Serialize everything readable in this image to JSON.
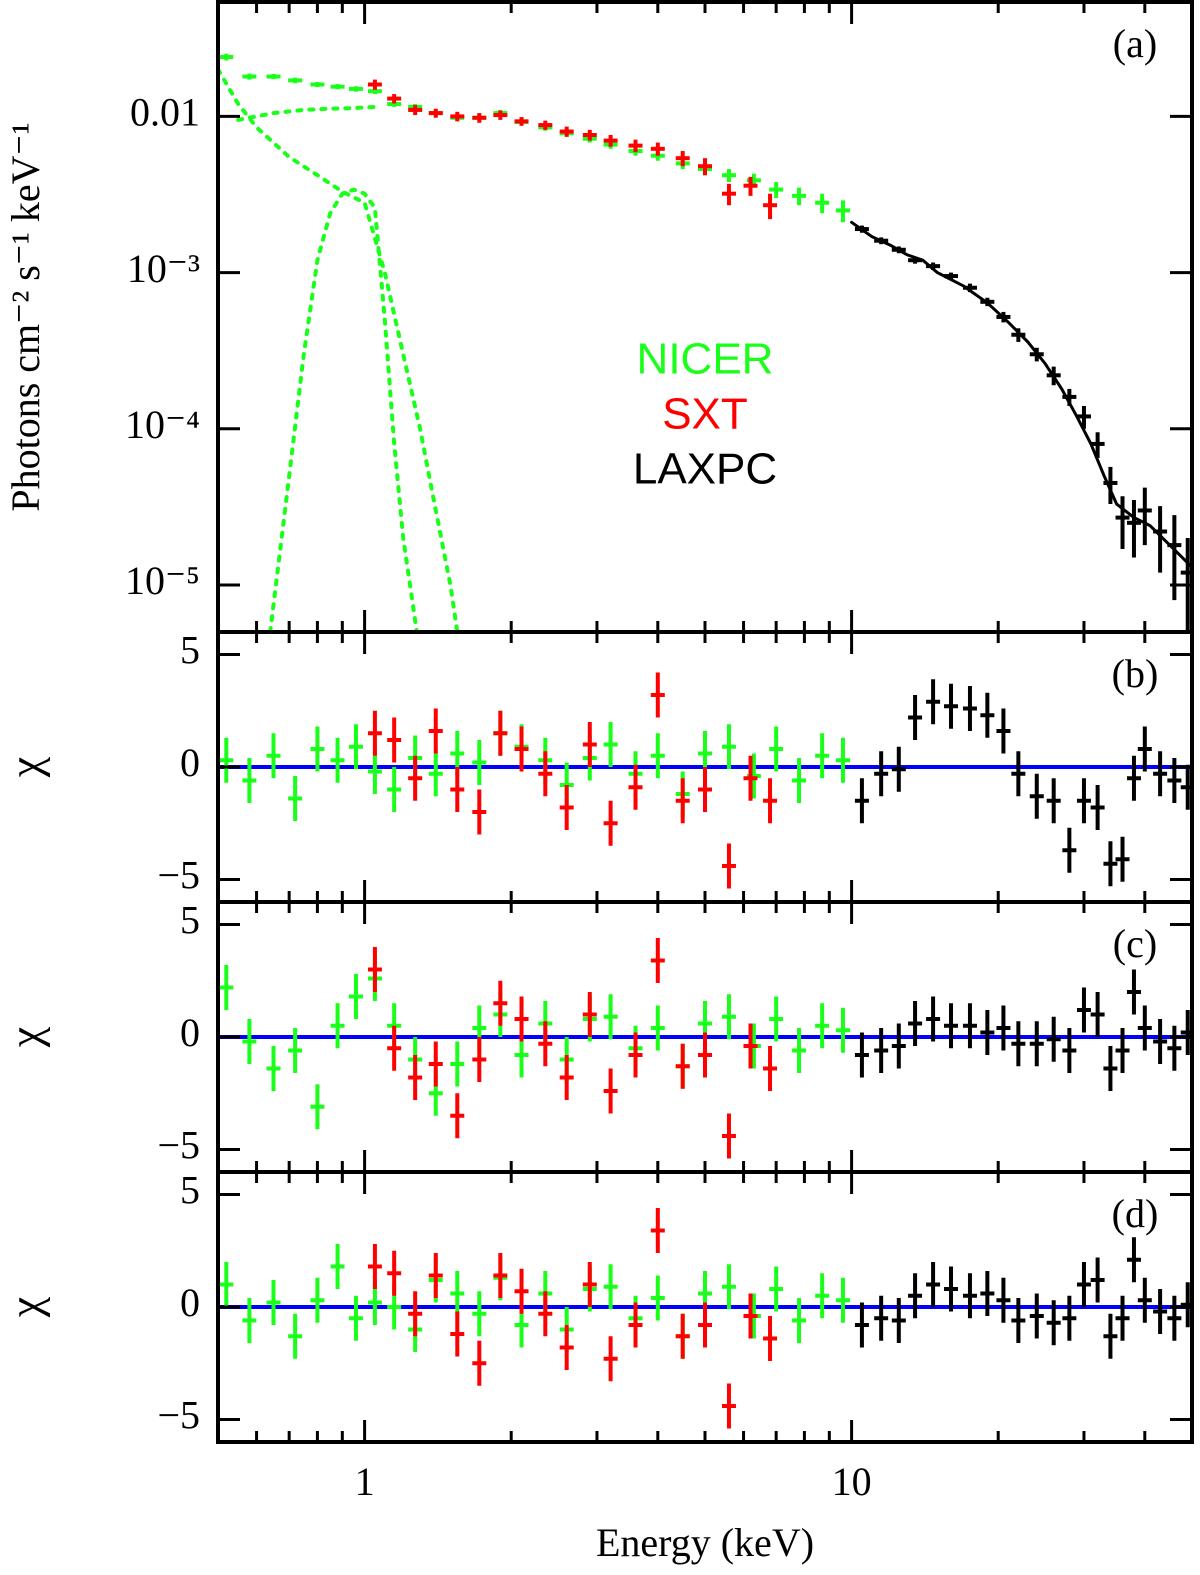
{
  "chart_data": [
    {
      "type": "errorbar",
      "panel_label": "(a)",
      "ylabel": "Photons cm⁻² s⁻¹ keV⁻¹",
      "ylog": true,
      "xlog": true,
      "xlim": [
        0.5,
        50
      ],
      "xticks": [
        1,
        10
      ],
      "xminorticks": [
        0.6,
        0.7,
        0.8,
        0.9,
        2,
        3,
        4,
        5,
        6,
        7,
        8,
        9,
        20,
        30,
        40,
        50
      ],
      "ylim": [
        5e-06,
        0.054
      ],
      "yticks": [
        {
          "value": 0.01,
          "label": "0.01"
        },
        {
          "value": 0.001,
          "label": "10⁻³"
        },
        {
          "value": 0.0001,
          "label": "10⁻⁴"
        },
        {
          "value": 1e-05,
          "label": "10⁻⁵"
        }
      ],
      "legend": "center",
      "series": [
        {
          "name": "NICER",
          "color": "#1aff1a",
          "x": [
            0.52,
            0.58,
            0.65,
            0.72,
            0.8,
            0.88,
            0.96,
            1.05,
            1.15,
            1.27,
            1.4,
            1.55,
            1.72,
            1.9,
            2.1,
            2.35,
            2.6,
            2.9,
            3.2,
            3.6,
            4.0,
            4.5,
            5.0,
            5.6,
            6.3,
            7.0,
            7.8,
            8.7,
            9.6
          ],
          "y": [
            0.024,
            0.018,
            0.018,
            0.017,
            0.016,
            0.0155,
            0.015,
            0.0145,
            0.012,
            0.0115,
            0.0105,
            0.0098,
            0.0098,
            0.0105,
            0.0092,
            0.0085,
            0.0078,
            0.0072,
            0.0066,
            0.006,
            0.0056,
            0.005,
            0.0046,
            0.0042,
            0.0039,
            0.0034,
            0.0031,
            0.0028,
            0.0025
          ],
          "yerr": [
            0.0012,
            0.0008,
            0.0007,
            0.0007,
            0.0006,
            0.0006,
            0.0006,
            0.0006,
            0.0005,
            0.0005,
            0.0005,
            0.0005,
            0.0005,
            0.0005,
            0.0004,
            0.0004,
            0.0004,
            0.0004,
            0.0004,
            0.0004,
            0.0004,
            0.0004,
            0.0004,
            0.0004,
            0.0004,
            0.0004,
            0.0004,
            0.0004,
            0.0004
          ]
        },
        {
          "name": "SXT",
          "color": "#ff0000",
          "x": [
            1.05,
            1.15,
            1.27,
            1.4,
            1.55,
            1.72,
            1.9,
            2.1,
            2.35,
            2.6,
            2.9,
            3.2,
            3.6,
            4.0,
            4.5,
            5.0,
            5.6,
            6.2,
            6.8
          ],
          "y": [
            0.016,
            0.013,
            0.011,
            0.0105,
            0.01,
            0.0098,
            0.0102,
            0.0093,
            0.0088,
            0.008,
            0.0076,
            0.007,
            0.0065,
            0.0062,
            0.0054,
            0.0048,
            0.0032,
            0.0036,
            0.0027
          ],
          "yerr": [
            0.0012,
            0.0009,
            0.0008,
            0.0007,
            0.0007,
            0.0007,
            0.0007,
            0.0006,
            0.0006,
            0.0006,
            0.0006,
            0.0006,
            0.0006,
            0.0006,
            0.0006,
            0.0006,
            0.0005,
            0.0005,
            0.0005
          ]
        },
        {
          "name": "LAXPC",
          "color": "#000000",
          "x": [
            10.5,
            11.5,
            12.5,
            13.5,
            14.7,
            16,
            17.5,
            19,
            20.5,
            22,
            24,
            26,
            28,
            30,
            32,
            34,
            36,
            38,
            40,
            43,
            46,
            49
          ],
          "y": [
            0.0019,
            0.0016,
            0.0014,
            0.0012,
            0.0011,
            0.00095,
            0.0008,
            0.00065,
            0.00052,
            0.0004,
            0.0003,
            0.00022,
            0.00016,
            0.00012,
            8e-05,
            4.5e-05,
            2.7e-05,
            2.5e-05,
            3e-05,
            2.2e-05,
            1.8e-05,
            1.2e-05
          ],
          "yerr": [
            0.0001,
            8e-05,
            7e-05,
            6e-05,
            6e-05,
            5e-05,
            5e-05,
            4e-05,
            4e-05,
            4e-05,
            3e-05,
            3e-05,
            2e-05,
            2e-05,
            1.5e-05,
            1.2e-05,
            1e-05,
            1e-05,
            1.2e-05,
            1e-05,
            1e-05,
            8e-06
          ]
        }
      ],
      "model_lines": [
        {
          "color": "#000000",
          "dashed": false,
          "x": [
            10,
            11,
            12,
            13,
            14,
            15,
            17,
            19,
            21,
            23,
            25,
            27,
            29,
            31,
            33,
            35,
            38,
            41,
            45,
            50
          ],
          "y": [
            0.0021,
            0.0017,
            0.0015,
            0.0013,
            0.0012,
            0.001,
            0.00082,
            0.00064,
            0.00048,
            0.00036,
            0.00026,
            0.00018,
            0.00012,
            8e-05,
            5e-05,
            3.3e-05,
            2.7e-05,
            2.4e-05,
            1.8e-05,
            1.3e-05
          ]
        },
        {
          "color": "#1aff1a",
          "dashed": true,
          "x": [
            0.55,
            0.65,
            0.75,
            0.85,
            0.95,
            1.05
          ],
          "y": [
            0.0095,
            0.0105,
            0.011,
            0.0112,
            0.0113,
            0.0115
          ]
        },
        {
          "color": "#1aff1a",
          "dashed": true,
          "x": [
            0.64,
            0.7,
            0.75,
            0.8,
            0.85,
            0.9,
            0.95,
            1.0,
            1.05,
            1.1,
            1.15,
            1.2,
            1.28
          ],
          "y": [
            5e-06,
            5e-05,
            0.0003,
            0.0012,
            0.0024,
            0.0032,
            0.0034,
            0.0032,
            0.0026,
            0.0005,
            8e-05,
            2e-05,
            5e-06
          ]
        },
        {
          "color": "#1aff1a",
          "dashed": true,
          "x": [
            0.5,
            0.55,
            0.6,
            0.7,
            0.8,
            0.9,
            1.0,
            1.1,
            1.2,
            1.3,
            1.4,
            1.5,
            1.55
          ],
          "y": [
            0.02,
            0.012,
            0.0085,
            0.0055,
            0.0042,
            0.0033,
            0.0028,
            0.001,
            0.0003,
            0.0001,
            3e-05,
            1e-05,
            5e-06
          ]
        }
      ]
    },
    {
      "type": "errorbar",
      "panel_label": "(b)",
      "ylabel": "χ",
      "ylog": false,
      "xlog": true,
      "xlim": [
        0.5,
        50
      ],
      "xticks": [
        1,
        10
      ],
      "xminorticks": [
        0.6,
        0.7,
        0.8,
        0.9,
        2,
        3,
        4,
        5,
        6,
        7,
        8,
        9,
        20,
        30,
        40,
        50
      ],
      "ylim": [
        -6,
        6
      ],
      "yticks": [
        5,
        0,
        {
          "value": -5,
          "label": "−5"
        }
      ],
      "hline": {
        "value": 0,
        "color": "#0000ff"
      },
      "series": [
        {
          "color": "#1aff1a",
          "yerr": 1,
          "x": [
            0.52,
            0.58,
            0.65,
            0.72,
            0.8,
            0.88,
            0.96,
            1.05,
            1.15,
            1.27,
            1.4,
            1.55,
            1.72,
            1.9,
            2.1,
            2.35,
            2.6,
            2.9,
            3.2,
            3.6,
            4.0,
            4.5,
            5.0,
            5.6,
            6.3,
            7.0,
            7.8,
            8.7,
            9.6
          ],
          "y": [
            0.3,
            -0.6,
            0.5,
            -1.4,
            0.8,
            0.3,
            0.9,
            -0.2,
            -1.0,
            0.4,
            -0.3,
            0.6,
            0.2,
            1.5,
            0.9,
            0.3,
            -0.8,
            0.4,
            1.0,
            -0.3,
            0.5,
            -1.2,
            0.6,
            0.9,
            -0.4,
            0.8,
            -0.6,
            0.5,
            0.3
          ]
        },
        {
          "color": "#ff0000",
          "yerr": 1,
          "x": [
            1.05,
            1.15,
            1.27,
            1.4,
            1.55,
            1.72,
            1.9,
            2.1,
            2.35,
            2.6,
            2.9,
            3.2,
            3.6,
            4.0,
            4.5,
            5.0,
            5.6,
            6.2,
            6.8
          ],
          "y": [
            1.5,
            1.2,
            -0.5,
            1.6,
            -1.0,
            -2.0,
            1.5,
            0.8,
            -0.3,
            -1.8,
            1.0,
            -2.5,
            -0.9,
            3.2,
            -1.5,
            -1.0,
            -4.4,
            -0.5,
            -1.5
          ]
        },
        {
          "color": "#000000",
          "yerr": 1,
          "x": [
            10.5,
            11.5,
            12.5,
            13.5,
            14.7,
            16,
            17.5,
            19,
            20.5,
            22,
            24,
            26,
            28,
            30,
            32,
            34,
            36,
            38,
            40,
            43,
            46,
            49
          ],
          "y": [
            -1.5,
            -0.3,
            -0.1,
            2.2,
            2.9,
            2.7,
            2.6,
            2.3,
            1.6,
            -0.3,
            -1.3,
            -1.5,
            -3.7,
            -1.5,
            -1.8,
            -4.3,
            -4.1,
            -0.5,
            0.8,
            -0.3,
            -0.6,
            -0.9
          ]
        }
      ]
    },
    {
      "type": "errorbar",
      "panel_label": "(c)",
      "ylabel": "χ",
      "ylog": false,
      "xlog": true,
      "xlim": [
        0.5,
        50
      ],
      "xticks": [
        1,
        10
      ],
      "xminorticks": [
        0.6,
        0.7,
        0.8,
        0.9,
        2,
        3,
        4,
        5,
        6,
        7,
        8,
        9,
        20,
        30,
        40,
        50
      ],
      "ylim": [
        -6,
        6
      ],
      "yticks": [
        5,
        0,
        {
          "value": -5,
          "label": "−5"
        }
      ],
      "hline": {
        "value": 0,
        "color": "#0000ff"
      },
      "series": [
        {
          "color": "#1aff1a",
          "yerr": 1,
          "x": [
            0.52,
            0.58,
            0.65,
            0.72,
            0.8,
            0.88,
            0.96,
            1.05,
            1.15,
            1.27,
            1.4,
            1.55,
            1.72,
            1.9,
            2.1,
            2.35,
            2.6,
            2.9,
            3.2,
            3.6,
            4.0,
            4.5,
            5.0,
            5.6,
            6.3,
            7.0,
            7.8,
            8.7,
            9.6
          ],
          "y": [
            2.2,
            -0.2,
            -1.4,
            -0.6,
            -3.1,
            0.5,
            1.8,
            2.6,
            0.5,
            -1.0,
            -2.5,
            -1.2,
            0.4,
            1.0,
            -0.8,
            0.6,
            -1.0,
            0.8,
            0.9,
            -0.5,
            0.4,
            -1.3,
            0.6,
            0.9,
            -0.4,
            0.8,
            -0.6,
            0.5,
            0.3
          ]
        },
        {
          "color": "#ff0000",
          "yerr": 1,
          "x": [
            1.05,
            1.15,
            1.27,
            1.4,
            1.55,
            1.72,
            1.9,
            2.1,
            2.35,
            2.6,
            2.9,
            3.2,
            3.6,
            4.0,
            4.5,
            5.0,
            5.6,
            6.2,
            6.8
          ],
          "y": [
            3.0,
            -0.5,
            -1.8,
            -1.2,
            -3.5,
            -1.0,
            1.5,
            0.8,
            -0.3,
            -1.8,
            1.0,
            -2.4,
            -0.8,
            3.4,
            -1.3,
            -0.8,
            -4.4,
            -0.4,
            -1.4
          ]
        },
        {
          "color": "#000000",
          "yerr": 1,
          "x": [
            10.5,
            11.5,
            12.5,
            13.5,
            14.7,
            16,
            17.5,
            19,
            20.5,
            22,
            24,
            26,
            28,
            30,
            32,
            34,
            36,
            38,
            40,
            43,
            46,
            49
          ],
          "y": [
            -0.8,
            -0.6,
            -0.4,
            0.6,
            0.8,
            0.5,
            0.5,
            0.2,
            0.4,
            -0.3,
            -0.3,
            -0.1,
            -0.6,
            1.2,
            1.0,
            -1.4,
            -0.6,
            2.0,
            0.4,
            -0.2,
            -0.5,
            0.2
          ]
        }
      ]
    },
    {
      "type": "errorbar",
      "panel_label": "(d)",
      "ylabel": "χ",
      "ylog": false,
      "xlog": true,
      "xlabel": "Energy (keV)",
      "xlim": [
        0.5,
        50
      ],
      "xticks": [
        1,
        10
      ],
      "xminorticks": [
        0.6,
        0.7,
        0.8,
        0.9,
        2,
        3,
        4,
        5,
        6,
        7,
        8,
        9,
        20,
        30,
        40,
        50
      ],
      "ylim": [
        -6,
        6
      ],
      "yticks": [
        5,
        0,
        {
          "value": -5,
          "label": "−5"
        }
      ],
      "hline": {
        "value": 0,
        "color": "#0000ff"
      },
      "series": [
        {
          "color": "#1aff1a",
          "yerr": 1,
          "x": [
            0.52,
            0.58,
            0.65,
            0.72,
            0.8,
            0.88,
            0.96,
            1.05,
            1.15,
            1.27,
            1.4,
            1.55,
            1.72,
            1.9,
            2.1,
            2.35,
            2.6,
            2.9,
            3.2,
            3.6,
            4.0,
            4.5,
            5.0,
            5.6,
            6.3,
            7.0,
            7.8,
            8.7,
            9.6
          ],
          "y": [
            1.0,
            -0.6,
            0.2,
            -1.3,
            0.3,
            1.8,
            -0.5,
            0.2,
            0.0,
            -1.0,
            1.2,
            0.6,
            -0.3,
            1.3,
            -0.8,
            0.6,
            -1.0,
            0.8,
            0.9,
            -0.5,
            0.4,
            -1.3,
            0.6,
            0.9,
            -0.4,
            0.8,
            -0.6,
            0.5,
            0.3
          ]
        },
        {
          "color": "#ff0000",
          "yerr": 1,
          "x": [
            1.05,
            1.15,
            1.27,
            1.4,
            1.55,
            1.72,
            1.9,
            2.1,
            2.35,
            2.6,
            2.9,
            3.2,
            3.6,
            4.0,
            4.5,
            5.0,
            5.6,
            6.2,
            6.8
          ],
          "y": [
            1.8,
            1.5,
            -0.3,
            1.4,
            -1.2,
            -2.5,
            1.4,
            0.7,
            -0.3,
            -1.8,
            1.0,
            -2.3,
            -0.8,
            3.4,
            -1.3,
            -0.8,
            -4.4,
            -0.4,
            -1.4
          ]
        },
        {
          "color": "#000000",
          "yerr": 1,
          "x": [
            10.5,
            11.5,
            12.5,
            13.5,
            14.7,
            16,
            17.5,
            19,
            20.5,
            22,
            24,
            26,
            28,
            30,
            32,
            34,
            36,
            38,
            40,
            43,
            46,
            49
          ],
          "y": [
            -0.8,
            -0.5,
            -0.6,
            0.5,
            1.0,
            0.8,
            0.5,
            0.6,
            0.3,
            -0.6,
            -0.4,
            -0.7,
            -0.5,
            1.0,
            1.2,
            -1.3,
            -0.5,
            2.1,
            0.3,
            -0.2,
            -0.5,
            0.1
          ]
        }
      ]
    }
  ]
}
